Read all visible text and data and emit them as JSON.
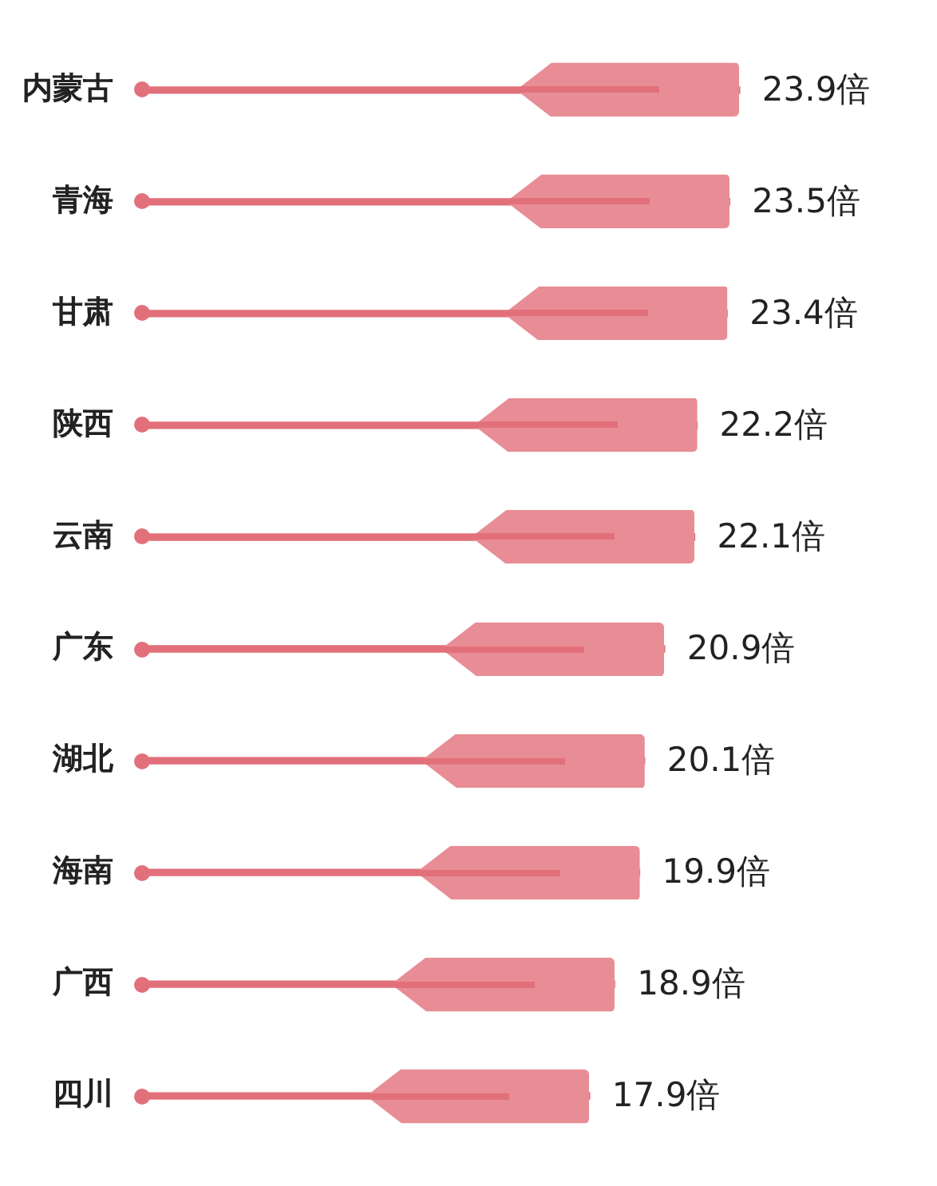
{
  "chart_data": {
    "type": "bar",
    "orientation": "horizontal",
    "categories": [
      "内蒙古",
      "青海",
      "甘肃",
      "陕西",
      "云南",
      "广东",
      "湖北",
      "海南",
      "广西",
      "四川"
    ],
    "values": [
      23.9,
      23.5,
      23.4,
      22.2,
      22.1,
      20.9,
      20.1,
      19.9,
      18.9,
      17.9
    ],
    "value_labels": [
      "23.9倍",
      "23.5倍",
      "23.4倍",
      "22.2倍",
      "22.1倍",
      "20.9倍",
      "20.1倍",
      "19.9倍",
      "18.9倍",
      "17.9倍"
    ],
    "color": "#e2707a",
    "legend": false,
    "tick_labels": "y"
  }
}
